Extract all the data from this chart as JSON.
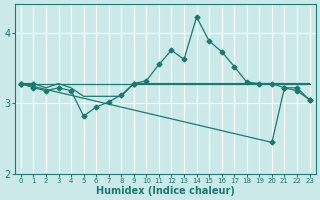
{
  "background_color": "#cce9ea",
  "grid_color": "#ffffff",
  "line_color": "#1a7a6e",
  "xlabel": "Humidex (Indice chaleur)",
  "xlim": [
    -0.5,
    23.5
  ],
  "ylim": [
    2,
    4.4
  ],
  "yticks": [
    2,
    3,
    4
  ],
  "xticks": [
    0,
    1,
    2,
    3,
    4,
    5,
    6,
    7,
    8,
    9,
    10,
    11,
    12,
    13,
    14,
    15,
    16,
    17,
    18,
    19,
    20,
    21,
    22,
    23
  ],
  "series": [
    {
      "x": [
        0,
        1,
        2,
        3,
        4,
        5,
        6,
        7,
        8,
        9,
        10,
        11,
        12,
        13,
        14,
        15,
        16,
        17,
        18,
        19,
        20,
        21,
        22,
        23
      ],
      "y": [
        3.28,
        3.28,
        3.22,
        3.28,
        3.22,
        3.1,
        3.1,
        3.1,
        3.1,
        3.28,
        3.28,
        3.28,
        3.28,
        3.28,
        3.28,
        3.28,
        3.28,
        3.28,
        3.28,
        3.28,
        3.28,
        3.28,
        3.28,
        3.28
      ],
      "marker": true,
      "marker_indices": [
        0,
        1,
        9
      ]
    },
    {
      "x": [
        0,
        1,
        2,
        3,
        4,
        5,
        6,
        7,
        8,
        9,
        10,
        11,
        12,
        13,
        14,
        15,
        16,
        17,
        18,
        19,
        20,
        21,
        22,
        23
      ],
      "y": [
        3.28,
        3.22,
        3.18,
        3.22,
        3.18,
        2.82,
        2.95,
        3.02,
        3.12,
        3.28,
        3.32,
        3.55,
        3.75,
        3.62,
        4.22,
        3.88,
        3.73,
        3.52,
        3.3,
        3.28,
        3.28,
        3.22,
        3.22,
        3.05
      ],
      "marker": true
    },
    {
      "x": [
        0,
        19,
        20,
        21,
        22,
        23
      ],
      "y": [
        3.28,
        3.28,
        3.28,
        3.28,
        3.28,
        3.28
      ],
      "marker": false
    },
    {
      "x": [
        0,
        20,
        21,
        22,
        23
      ],
      "y": [
        3.28,
        2.45,
        3.22,
        3.18,
        3.05
      ],
      "marker": false
    }
  ]
}
